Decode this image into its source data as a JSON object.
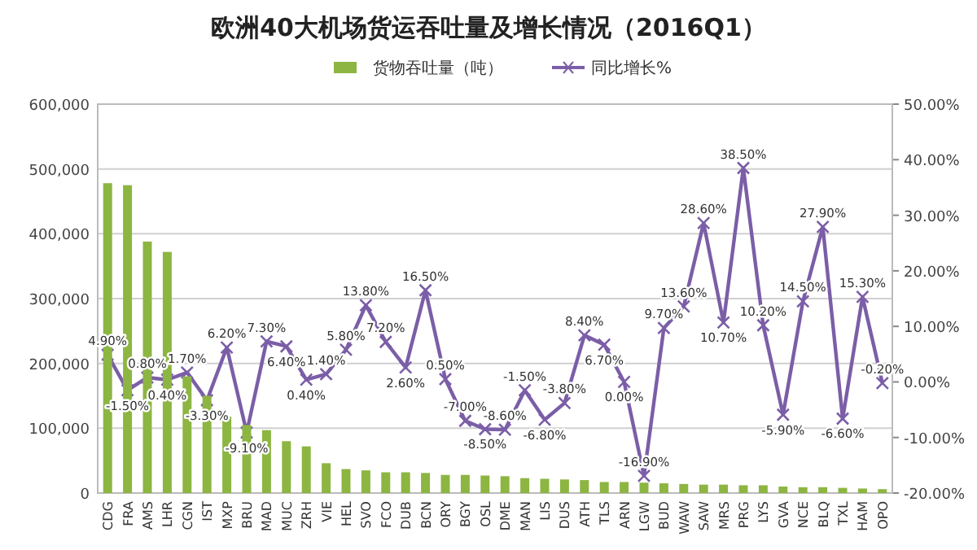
{
  "chart_data": {
    "type": "bar",
    "title": "欧洲40大机场货运吞吐量及增长情况（2016Q1）",
    "categories": [
      "CDG",
      "FRA",
      "AMS",
      "LHR",
      "CGN",
      "IST",
      "MXP",
      "BRU",
      "MAD",
      "MUC",
      "ZRH",
      "VIE",
      "HEL",
      "SVO",
      "FCO",
      "DUB",
      "BCN",
      "ORY",
      "BGY",
      "OSL",
      "DME",
      "MAN",
      "LIS",
      "DUS",
      "ATH",
      "TLS",
      "ARN",
      "LGW",
      "BUD",
      "WAW",
      "SAW",
      "MRS",
      "PRG",
      "LYS",
      "GVA",
      "NCE",
      "BLQ",
      "TXL",
      "HAM",
      "OPO"
    ],
    "series": [
      {
        "name": "货物吞吐量（吨）",
        "color": "#8db542",
        "values": [
          478000,
          475000,
          388000,
          372000,
          180000,
          150000,
          118000,
          105000,
          97000,
          80000,
          72000,
          46000,
          37000,
          35000,
          32000,
          32000,
          31000,
          28000,
          28000,
          27000,
          26000,
          23000,
          22000,
          21000,
          20000,
          17000,
          17000,
          16000,
          15000,
          14000,
          13000,
          13000,
          12000,
          12000,
          10000,
          9000,
          9000,
          8000,
          7000,
          6000
        ]
      },
      {
        "name": "同比增长%",
        "type": "line",
        "axis": "y2",
        "color": "#7b5ea7",
        "marker": "cross",
        "values": [
          4.9,
          -1.5,
          0.8,
          0.4,
          1.7,
          -3.3,
          6.2,
          -9.1,
          7.3,
          6.4,
          0.4,
          1.4,
          5.8,
          13.8,
          7.2,
          2.6,
          16.5,
          0.5,
          -7.0,
          -8.5,
          -8.6,
          -1.5,
          -6.8,
          -3.8,
          8.4,
          6.7,
          0.0,
          -16.9,
          9.7,
          13.6,
          28.6,
          10.7,
          38.5,
          10.2,
          -5.9,
          14.5,
          27.9,
          -6.6,
          15.3,
          -0.2
        ],
        "value_labels": [
          "4.90%",
          "-1.50%",
          "0.80%",
          "0.40%",
          "1.70%",
          "-3.30%",
          "6.20%",
          "-9.10%",
          "7.30%",
          "6.40%",
          "0.40%",
          "1.40%",
          "5.80%",
          "13.80%",
          "7.20%",
          "2.60%",
          "16.50%",
          "0.50%",
          "-7.00%",
          "-8.50%",
          "-8.60%",
          "-1.50%",
          "-6.80%",
          "-3.80%",
          "8.40%",
          "6.70%",
          "0.00%",
          "-16.90%",
          "9.70%",
          "13.60%",
          "28.60%",
          "10.70%",
          "38.50%",
          "10.20%",
          "-5.90%",
          "14.50%",
          "27.90%",
          "-6.60%",
          "15.30%",
          "-0.20%"
        ]
      }
    ],
    "ylim": [
      0,
      600000
    ],
    "yticks": [
      {
        "value": 0,
        "label": "0"
      },
      {
        "value": 100000,
        "label": "100,000"
      },
      {
        "value": 200000,
        "label": "200,000"
      },
      {
        "value": 300000,
        "label": "300,000"
      },
      {
        "value": 400000,
        "label": "400,000"
      },
      {
        "value": 500000,
        "label": "500,000"
      },
      {
        "value": 600000,
        "label": "600,000"
      }
    ],
    "y2lim": [
      -20,
      50
    ],
    "y2ticks": [
      {
        "value": -20,
        "label": "-20.00%"
      },
      {
        "value": -10,
        "label": "-10.00%"
      },
      {
        "value": 0,
        "label": "0.00%"
      },
      {
        "value": 10,
        "label": "10.00%"
      },
      {
        "value": 20,
        "label": "20.00%"
      },
      {
        "value": 30,
        "label": "30.00%"
      },
      {
        "value": 40,
        "label": "40.00%"
      },
      {
        "value": 50,
        "label": "50.00%"
      }
    ],
    "grid": "y",
    "legend": "top"
  }
}
